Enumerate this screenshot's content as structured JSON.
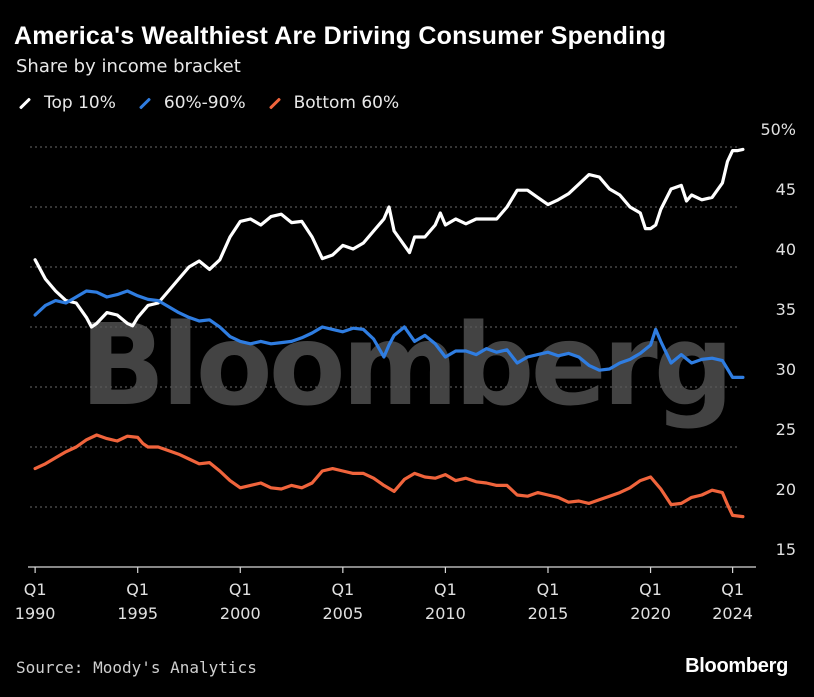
{
  "header": {
    "title": "America's Wealthiest Are Driving Consumer Spending",
    "subtitle": "Share by income bracket"
  },
  "legend": [
    {
      "label": "Top 10%",
      "color": "#ffffff"
    },
    {
      "label": "60%-90%",
      "color": "#2f7de1"
    },
    {
      "label": "Bottom 60%",
      "color": "#f0643c"
    }
  ],
  "footer": {
    "source": "Source: Moody's Analytics",
    "brand": "Bloomberg",
    "watermark": "Bloomberg"
  },
  "chart_data": {
    "type": "line",
    "title": "America's Wealthiest Are Driving Consumer Spending",
    "subtitle": "Share by income bracket",
    "xlabel": "",
    "ylabel": "",
    "xlim": [
      1989.75,
      2024.75
    ],
    "ylim": [
      15,
      50
    ],
    "y_ticks": [
      {
        "value": 50,
        "label": "50%"
      },
      {
        "value": 45,
        "label": "45"
      },
      {
        "value": 40,
        "label": "40"
      },
      {
        "value": 35,
        "label": "35"
      },
      {
        "value": 30,
        "label": "30"
      },
      {
        "value": 25,
        "label": "25"
      },
      {
        "value": 20,
        "label": "20"
      },
      {
        "value": 15,
        "label": "15"
      }
    ],
    "x_ticks": [
      {
        "value": 1990,
        "quarter": "Q1",
        "year": "1990"
      },
      {
        "value": 1995,
        "quarter": "Q1",
        "year": "1995"
      },
      {
        "value": 2000,
        "quarter": "Q1",
        "year": "2000"
      },
      {
        "value": 2005,
        "quarter": "Q1",
        "year": "2005"
      },
      {
        "value": 2010,
        "quarter": "Q1",
        "year": "2010"
      },
      {
        "value": 2015,
        "quarter": "Q1",
        "year": "2015"
      },
      {
        "value": 2020,
        "quarter": "Q1",
        "year": "2020"
      },
      {
        "value": 2024,
        "quarter": "Q1",
        "year": "2024"
      }
    ],
    "series": [
      {
        "name": "Top 10%",
        "color": "#ffffff",
        "points": [
          [
            1990.0,
            40.6
          ],
          [
            1990.5,
            39.0
          ],
          [
            1991.0,
            38.0
          ],
          [
            1991.5,
            37.2
          ],
          [
            1992.0,
            37.0
          ],
          [
            1992.5,
            35.8
          ],
          [
            1992.75,
            35.0
          ],
          [
            1993.0,
            35.3
          ],
          [
            1993.5,
            36.2
          ],
          [
            1994.0,
            36.0
          ],
          [
            1994.5,
            35.3
          ],
          [
            1994.75,
            35.1
          ],
          [
            1995.0,
            35.8
          ],
          [
            1995.5,
            36.8
          ],
          [
            1996.0,
            37.0
          ],
          [
            1996.5,
            38.0
          ],
          [
            1997.0,
            39.0
          ],
          [
            1997.5,
            40.0
          ],
          [
            1998.0,
            40.5
          ],
          [
            1998.5,
            39.8
          ],
          [
            1999.0,
            40.6
          ],
          [
            1999.5,
            42.5
          ],
          [
            2000.0,
            43.8
          ],
          [
            2000.5,
            44.0
          ],
          [
            2001.0,
            43.5
          ],
          [
            2001.5,
            44.2
          ],
          [
            2002.0,
            44.4
          ],
          [
            2002.5,
            43.7
          ],
          [
            2003.0,
            43.8
          ],
          [
            2003.5,
            42.5
          ],
          [
            2004.0,
            40.7
          ],
          [
            2004.5,
            41.0
          ],
          [
            2005.0,
            41.8
          ],
          [
            2005.5,
            41.5
          ],
          [
            2006.0,
            42.0
          ],
          [
            2006.5,
            43.0
          ],
          [
            2007.0,
            44.0
          ],
          [
            2007.25,
            45.0
          ],
          [
            2007.5,
            43.0
          ],
          [
            2008.0,
            41.8
          ],
          [
            2008.25,
            41.2
          ],
          [
            2008.5,
            42.5
          ],
          [
            2009.0,
            42.5
          ],
          [
            2009.5,
            43.5
          ],
          [
            2009.75,
            44.5
          ],
          [
            2010.0,
            43.5
          ],
          [
            2010.5,
            44.0
          ],
          [
            2011.0,
            43.6
          ],
          [
            2011.5,
            44.0
          ],
          [
            2012.0,
            44.0
          ],
          [
            2012.5,
            44.0
          ],
          [
            2013.0,
            45.0
          ],
          [
            2013.5,
            46.4
          ],
          [
            2014.0,
            46.4
          ],
          [
            2014.5,
            45.8
          ],
          [
            2015.0,
            45.2
          ],
          [
            2015.5,
            45.6
          ],
          [
            2016.0,
            46.1
          ],
          [
            2016.5,
            46.9
          ],
          [
            2017.0,
            47.7
          ],
          [
            2017.5,
            47.5
          ],
          [
            2018.0,
            46.5
          ],
          [
            2018.5,
            46.0
          ],
          [
            2019.0,
            45.0
          ],
          [
            2019.5,
            44.5
          ],
          [
            2019.75,
            43.2
          ],
          [
            2020.0,
            43.2
          ],
          [
            2020.25,
            43.5
          ],
          [
            2020.5,
            44.8
          ],
          [
            2021.0,
            46.5
          ],
          [
            2021.5,
            46.8
          ],
          [
            2021.75,
            45.5
          ],
          [
            2022.0,
            46.0
          ],
          [
            2022.5,
            45.6
          ],
          [
            2023.0,
            45.8
          ],
          [
            2023.5,
            47.0
          ],
          [
            2023.75,
            48.8
          ],
          [
            2024.0,
            49.7
          ],
          [
            2024.25,
            49.7
          ],
          [
            2024.5,
            49.8
          ]
        ]
      },
      {
        "name": "60%-90%",
        "color": "#2f7de1",
        "points": [
          [
            1990.0,
            36.0
          ],
          [
            1990.5,
            36.8
          ],
          [
            1991.0,
            37.2
          ],
          [
            1991.5,
            37.0
          ],
          [
            1992.0,
            37.5
          ],
          [
            1992.5,
            38.0
          ],
          [
            1993.0,
            37.9
          ],
          [
            1993.5,
            37.5
          ],
          [
            1994.0,
            37.7
          ],
          [
            1994.5,
            38.0
          ],
          [
            1995.0,
            37.6
          ],
          [
            1995.5,
            37.3
          ],
          [
            1996.0,
            37.2
          ],
          [
            1996.5,
            36.7
          ],
          [
            1997.0,
            36.2
          ],
          [
            1997.5,
            35.8
          ],
          [
            1998.0,
            35.5
          ],
          [
            1998.5,
            35.6
          ],
          [
            1999.0,
            35.0
          ],
          [
            1999.5,
            34.2
          ],
          [
            2000.0,
            33.8
          ],
          [
            2000.5,
            33.6
          ],
          [
            2001.0,
            33.8
          ],
          [
            2001.5,
            33.6
          ],
          [
            2002.0,
            33.7
          ],
          [
            2002.5,
            33.8
          ],
          [
            2003.0,
            34.1
          ],
          [
            2003.5,
            34.5
          ],
          [
            2004.0,
            35.0
          ],
          [
            2004.5,
            34.8
          ],
          [
            2005.0,
            34.6
          ],
          [
            2005.5,
            34.9
          ],
          [
            2006.0,
            34.8
          ],
          [
            2006.5,
            34.0
          ],
          [
            2007.0,
            32.5
          ],
          [
            2007.25,
            33.5
          ],
          [
            2007.5,
            34.3
          ],
          [
            2008.0,
            35.0
          ],
          [
            2008.5,
            33.8
          ],
          [
            2009.0,
            34.3
          ],
          [
            2009.5,
            33.6
          ],
          [
            2010.0,
            32.5
          ],
          [
            2010.5,
            33.0
          ],
          [
            2011.0,
            33.0
          ],
          [
            2011.5,
            32.7
          ],
          [
            2012.0,
            33.2
          ],
          [
            2012.5,
            32.9
          ],
          [
            2013.0,
            33.1
          ],
          [
            2013.5,
            32.0
          ],
          [
            2014.0,
            32.5
          ],
          [
            2014.5,
            32.7
          ],
          [
            2015.0,
            32.9
          ],
          [
            2015.5,
            32.6
          ],
          [
            2016.0,
            32.8
          ],
          [
            2016.5,
            32.5
          ],
          [
            2017.0,
            31.8
          ],
          [
            2017.5,
            31.4
          ],
          [
            2018.0,
            31.5
          ],
          [
            2018.5,
            32.0
          ],
          [
            2019.0,
            32.3
          ],
          [
            2019.5,
            32.8
          ],
          [
            2020.0,
            33.5
          ],
          [
            2020.25,
            34.8
          ],
          [
            2020.5,
            33.8
          ],
          [
            2021.0,
            32.0
          ],
          [
            2021.5,
            32.7
          ],
          [
            2022.0,
            32.0
          ],
          [
            2022.5,
            32.3
          ],
          [
            2023.0,
            32.4
          ],
          [
            2023.5,
            32.2
          ],
          [
            2023.75,
            31.5
          ],
          [
            2024.0,
            30.8
          ],
          [
            2024.5,
            30.8
          ]
        ]
      },
      {
        "name": "Bottom 60%",
        "color": "#f0643c",
        "points": [
          [
            1990.0,
            23.2
          ],
          [
            1990.5,
            23.6
          ],
          [
            1991.0,
            24.1
          ],
          [
            1991.5,
            24.6
          ],
          [
            1992.0,
            25.0
          ],
          [
            1992.5,
            25.6
          ],
          [
            1993.0,
            26.0
          ],
          [
            1993.5,
            25.7
          ],
          [
            1994.0,
            25.5
          ],
          [
            1994.5,
            25.9
          ],
          [
            1995.0,
            25.8
          ],
          [
            1995.25,
            25.3
          ],
          [
            1995.5,
            25.0
          ],
          [
            1996.0,
            25.0
          ],
          [
            1996.5,
            24.7
          ],
          [
            1997.0,
            24.4
          ],
          [
            1997.5,
            24.0
          ],
          [
            1998.0,
            23.6
          ],
          [
            1998.5,
            23.7
          ],
          [
            1999.0,
            23.0
          ],
          [
            1999.5,
            22.2
          ],
          [
            2000.0,
            21.6
          ],
          [
            2000.5,
            21.8
          ],
          [
            2001.0,
            22.0
          ],
          [
            2001.5,
            21.6
          ],
          [
            2002.0,
            21.5
          ],
          [
            2002.5,
            21.8
          ],
          [
            2003.0,
            21.6
          ],
          [
            2003.5,
            22.0
          ],
          [
            2004.0,
            23.0
          ],
          [
            2004.5,
            23.2
          ],
          [
            2005.0,
            23.0
          ],
          [
            2005.5,
            22.8
          ],
          [
            2006.0,
            22.8
          ],
          [
            2006.5,
            22.4
          ],
          [
            2007.0,
            21.8
          ],
          [
            2007.5,
            21.3
          ],
          [
            2008.0,
            22.3
          ],
          [
            2008.5,
            22.8
          ],
          [
            2009.0,
            22.5
          ],
          [
            2009.5,
            22.4
          ],
          [
            2010.0,
            22.7
          ],
          [
            2010.5,
            22.2
          ],
          [
            2011.0,
            22.4
          ],
          [
            2011.5,
            22.1
          ],
          [
            2012.0,
            22.0
          ],
          [
            2012.5,
            21.8
          ],
          [
            2013.0,
            21.8
          ],
          [
            2013.5,
            21.0
          ],
          [
            2014.0,
            20.9
          ],
          [
            2014.5,
            21.2
          ],
          [
            2015.0,
            21.0
          ],
          [
            2015.5,
            20.8
          ],
          [
            2016.0,
            20.4
          ],
          [
            2016.5,
            20.5
          ],
          [
            2017.0,
            20.3
          ],
          [
            2017.5,
            20.6
          ],
          [
            2018.0,
            20.9
          ],
          [
            2018.5,
            21.2
          ],
          [
            2019.0,
            21.6
          ],
          [
            2019.5,
            22.2
          ],
          [
            2020.0,
            22.5
          ],
          [
            2020.5,
            21.5
          ],
          [
            2021.0,
            20.2
          ],
          [
            2021.5,
            20.3
          ],
          [
            2022.0,
            20.8
          ],
          [
            2022.5,
            21.0
          ],
          [
            2023.0,
            21.4
          ],
          [
            2023.5,
            21.2
          ],
          [
            2023.75,
            20.2
          ],
          [
            2024.0,
            19.3
          ],
          [
            2024.5,
            19.2
          ]
        ]
      }
    ]
  }
}
